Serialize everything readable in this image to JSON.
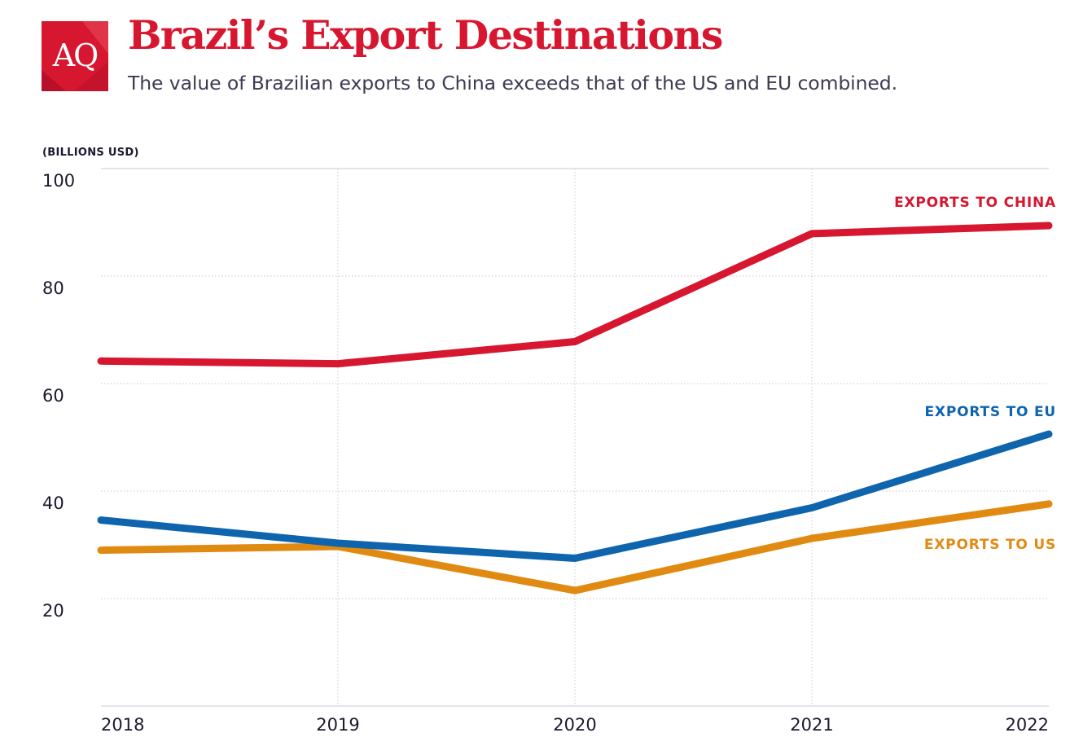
{
  "header": {
    "logo_text": "AQ",
    "title": "Brazil’s Export Destinations",
    "subtitle": "The value of Brazilian exports to China exceeds that of the US and EU combined."
  },
  "colors": {
    "brand_red": "#d7172f",
    "china": "#d7172f",
    "eu": "#0e64ad",
    "us": "#e18a12",
    "grid": "#c9c9d6",
    "text": "#1a1a2e"
  },
  "chart_data": {
    "type": "line",
    "x": [
      "2018",
      "2019",
      "2020",
      "2021",
      "2022"
    ],
    "ylabel": "(BILLIONS USD)",
    "ylim": [
      0,
      100
    ],
    "y_ticks": [
      "20",
      "40",
      "60",
      "80",
      "100"
    ],
    "grid": true,
    "legend": "inline labels at right end of lines",
    "series": [
      {
        "name": "EXPORTS TO CHINA",
        "color": "#d7172f",
        "values": [
          64.2,
          63.7,
          67.8,
          87.9,
          89.4
        ]
      },
      {
        "name": "EXPORTS TO EU",
        "color": "#0e64ad",
        "values": [
          34.6,
          30.3,
          27.5,
          36.9,
          50.6
        ]
      },
      {
        "name": "EXPORTS TO US",
        "color": "#e18a12",
        "values": [
          29.0,
          29.7,
          21.5,
          31.2,
          37.6
        ]
      }
    ]
  }
}
